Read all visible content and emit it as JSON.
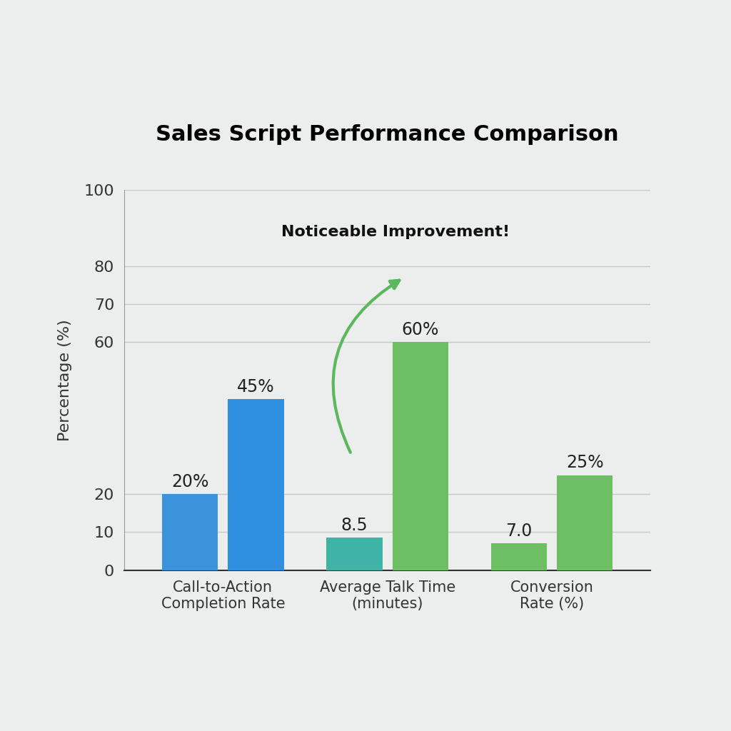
{
  "chart_data": {
    "type": "bar",
    "title": "Sales Script Performance Comparison",
    "y_label": "Percentage (%)",
    "categories": [
      "Call-to-Action\nCompletion Rate",
      "Average Talk Time\n(minutes)",
      "Conversion\nRate (%)"
    ],
    "series": [
      {
        "values": [
          20,
          8.5,
          7.0
        ],
        "value_labels": [
          "20%",
          "8.5",
          "7.0"
        ],
        "colors": [
          "#3b93dc",
          "#3fb3a6",
          "#6cc063"
        ]
      },
      {
        "values": [
          45,
          60,
          25
        ],
        "value_labels": [
          "45%",
          "60%",
          "25%"
        ],
        "colors": [
          "#2f8fe0",
          "#6cc063",
          "#6cc063"
        ]
      }
    ],
    "annotations": [
      {
        "text": "Noticeable Improvement!"
      }
    ],
    "ylim": [
      0,
      100
    ],
    "yticks": [
      0,
      10,
      20,
      60,
      70,
      80,
      100
    ],
    "grid": true,
    "data_labels": true
  }
}
